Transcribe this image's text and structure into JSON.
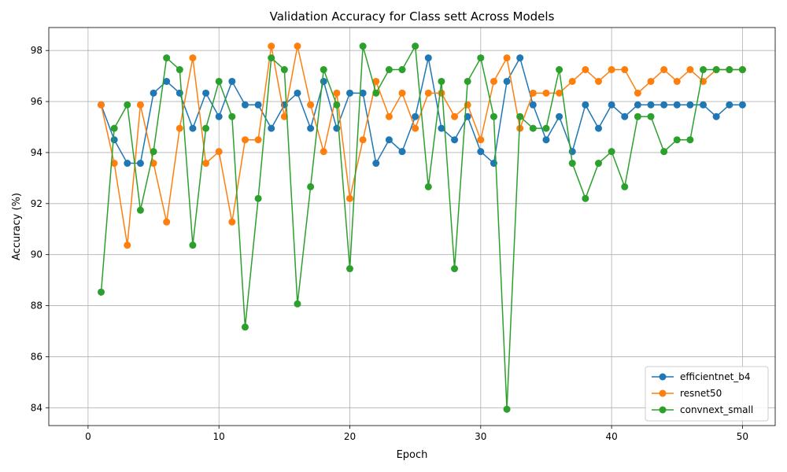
{
  "chart_data": {
    "type": "line",
    "title": "Validation Accuracy for Class sett Across Models",
    "xlabel": "Epoch",
    "ylabel": "Accuracy (%)",
    "xlim": [
      -3,
      52.5
    ],
    "ylim": [
      83.3,
      98.9
    ],
    "xticks": [
      0,
      10,
      20,
      30,
      40,
      50
    ],
    "yticks": [
      84,
      86,
      88,
      90,
      92,
      94,
      96,
      98
    ],
    "grid": true,
    "legend_position": "lower-right",
    "x": [
      1,
      2,
      3,
      4,
      5,
      6,
      7,
      8,
      9,
      10,
      11,
      12,
      13,
      14,
      15,
      16,
      17,
      18,
      19,
      20,
      21,
      22,
      23,
      24,
      25,
      26,
      27,
      28,
      29,
      30,
      31,
      32,
      33,
      34,
      35,
      36,
      37,
      38,
      39,
      40,
      41,
      42,
      43,
      44,
      45,
      46,
      47,
      48,
      49,
      50
    ],
    "series": [
      {
        "name": "efficientnet_b4",
        "color": "#1f77b4",
        "values": [
          95.87,
          94.5,
          93.58,
          93.58,
          96.33,
          96.79,
          96.33,
          94.95,
          96.33,
          95.41,
          96.79,
          95.87,
          95.87,
          94.95,
          95.87,
          96.33,
          94.95,
          96.79,
          94.95,
          96.33,
          96.33,
          93.58,
          94.5,
          94.04,
          95.41,
          97.71,
          94.95,
          94.5,
          95.41,
          94.04,
          93.58,
          96.79,
          97.71,
          95.87,
          94.5,
          95.41,
          94.04,
          95.87,
          94.95,
          95.87,
          95.41,
          95.87,
          95.87,
          95.87,
          95.87,
          95.87,
          95.87,
          95.41,
          95.87,
          95.87
        ]
      },
      {
        "name": "resnet50",
        "color": "#ff7f0e",
        "values": [
          95.87,
          93.58,
          90.37,
          95.87,
          93.58,
          91.28,
          94.95,
          97.71,
          93.58,
          94.04,
          91.28,
          94.5,
          94.5,
          98.17,
          95.41,
          98.17,
          95.87,
          94.04,
          96.33,
          92.2,
          94.5,
          96.79,
          95.41,
          96.33,
          94.95,
          96.33,
          96.33,
          95.41,
          95.87,
          94.5,
          96.79,
          97.71,
          94.95,
          96.33,
          96.33,
          96.33,
          96.79,
          97.25,
          96.79,
          97.25,
          97.25,
          96.33,
          96.79,
          97.25,
          96.79,
          97.25,
          96.79,
          97.25,
          97.25,
          97.25
        ]
      },
      {
        "name": "convnext_small",
        "color": "#2ca02c",
        "values": [
          88.53,
          94.95,
          95.87,
          91.74,
          94.04,
          97.71,
          97.25,
          90.37,
          94.95,
          96.79,
          95.41,
          87.16,
          92.2,
          97.71,
          97.25,
          88.07,
          92.66,
          97.25,
          95.87,
          89.45,
          98.17,
          96.33,
          97.25,
          97.25,
          98.17,
          92.66,
          96.79,
          89.45,
          96.79,
          97.71,
          95.41,
          83.94,
          95.41,
          94.95,
          94.95,
          97.25,
          93.58,
          92.2,
          93.58,
          94.04,
          92.66,
          95.41,
          95.41,
          94.04,
          94.5,
          94.5,
          97.25,
          97.25,
          97.25,
          97.25
        ]
      }
    ]
  }
}
